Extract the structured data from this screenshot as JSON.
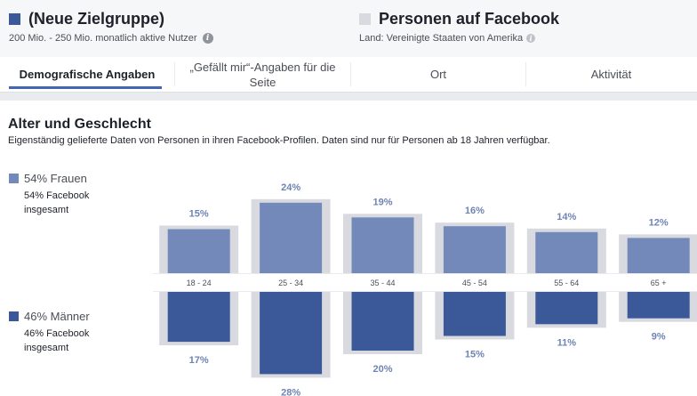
{
  "audiences": {
    "selected": {
      "title": "(Neue Zielgruppe)",
      "subtitle": "200 Mio. - 250 Mio. monatlich aktive Nutzer",
      "color": "#3b5998"
    },
    "compare": {
      "title": "Personen auf Facebook",
      "subtitle": "Land: Vereinigte Staaten von Amerika",
      "color": "#d8dadf"
    }
  },
  "tabs": [
    {
      "label": "Demografische Angaben",
      "active": true
    },
    {
      "label": "„Gefällt mir“-Angaben für die Seite",
      "active": false
    },
    {
      "label": "Ort",
      "active": false
    },
    {
      "label": "Aktivität",
      "active": false
    }
  ],
  "section": {
    "title": "Alter und Geschlecht",
    "description": "Eigenständig gelieferte Daten von Personen in ihren Facebook-Profilen. Daten sind nur für Personen ab 18 Jahren verfügbar."
  },
  "legend": {
    "women": {
      "title": "54% Frauen",
      "sub": "54% Facebook insgesamt",
      "color": "#7289ba"
    },
    "men": {
      "title": "46% Männer",
      "sub": "46% Facebook insgesamt",
      "color": "#3b5998"
    }
  },
  "chart_data": {
    "type": "bar",
    "categories": [
      "18 - 24",
      "25 - 34",
      "35 - 44",
      "45 - 54",
      "55 - 64",
      "65 +"
    ],
    "series": [
      {
        "name": "Frauen",
        "values": [
          15,
          24,
          19,
          16,
          14,
          12
        ],
        "labels": [
          "15%",
          "24%",
          "19%",
          "16%",
          "14%",
          "12%"
        ],
        "color": "#7289ba"
      },
      {
        "name": "Männer",
        "values": [
          17,
          28,
          20,
          15,
          11,
          9
        ],
        "labels": [
          "17%",
          "28%",
          "20%",
          "15%",
          "11%",
          "9%"
        ],
        "color": "#3b5998"
      }
    ],
    "comparison": {
      "women": [
        15,
        24,
        19,
        16,
        14,
        12
      ],
      "men": [
        17,
        28,
        20,
        15,
        11,
        9
      ],
      "color": "#d8dadf"
    }
  }
}
